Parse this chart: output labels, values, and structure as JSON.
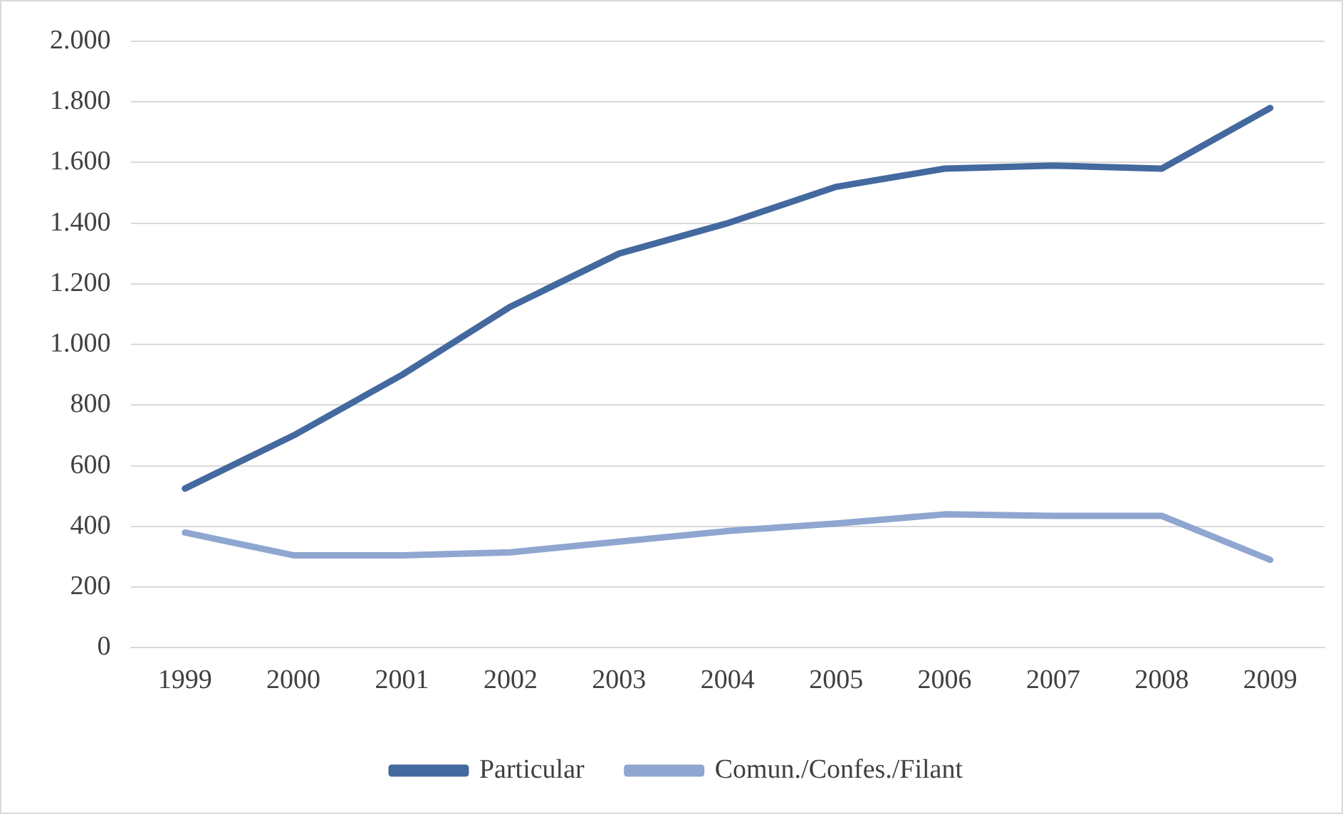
{
  "chart_data": {
    "type": "line",
    "categories": [
      "1999",
      "2000",
      "2001",
      "2002",
      "2003",
      "2004",
      "2005",
      "2006",
      "2007",
      "2008",
      "2009"
    ],
    "series": [
      {
        "name": "Particular",
        "color": "#43699e",
        "values": [
          525,
          700,
          900,
          1125,
          1300,
          1400,
          1520,
          1580,
          1590,
          1580,
          1780
        ]
      },
      {
        "name": "Comun./Confes./Filant",
        "color": "#8fa6d0",
        "values": [
          380,
          305,
          305,
          315,
          350,
          385,
          410,
          440,
          435,
          435,
          290
        ]
      }
    ],
    "ylim": [
      0,
      2000
    ],
    "yticks": [
      0,
      200,
      400,
      600,
      800,
      {
        "value": 1000,
        "label": "1.000"
      },
      {
        "value": 1200,
        "label": "1.200"
      },
      {
        "value": 1400,
        "label": "1.400"
      },
      {
        "value": 1600,
        "label": "1.600"
      },
      {
        "value": 1800,
        "label": "1.800"
      },
      {
        "value": 2000,
        "label": "2.000"
      }
    ],
    "grid": "y",
    "legend": "bottom",
    "marker": "none",
    "line_style": "solid"
  }
}
